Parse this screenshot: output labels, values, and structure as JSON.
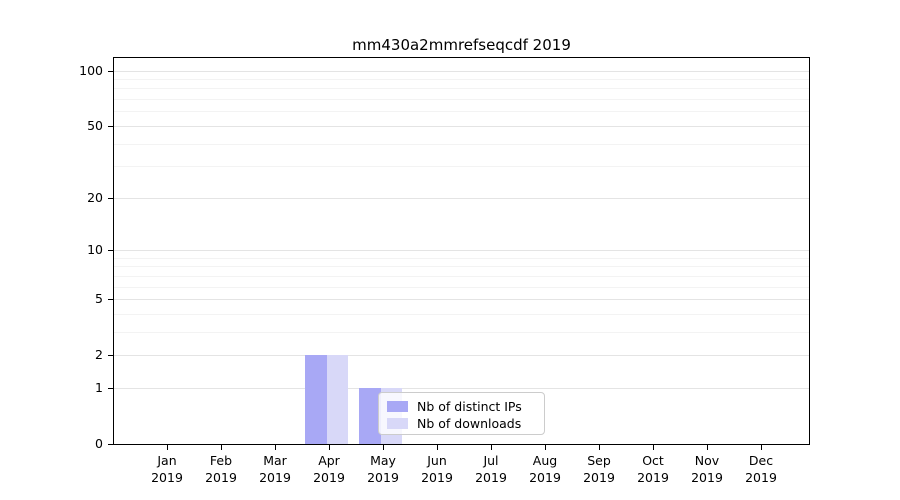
{
  "chart_data": {
    "type": "bar",
    "title": "mm430a2mmrefseqcdf 2019",
    "categories": [
      "Jan",
      "Feb",
      "Mar",
      "Apr",
      "May",
      "Jun",
      "Jul",
      "Aug",
      "Sep",
      "Oct",
      "Nov",
      "Dec"
    ],
    "year": "2019",
    "series": [
      {
        "name": "Nb of distinct IPs",
        "color": "#a8a8f5",
        "values": [
          0,
          0,
          0,
          2,
          1,
          0,
          0,
          0,
          0,
          0,
          0,
          0
        ]
      },
      {
        "name": "Nb of downloads",
        "color": "#d8d8f8",
        "values": [
          0,
          0,
          0,
          2,
          1,
          0,
          0,
          0,
          0,
          0,
          0,
          0
        ]
      }
    ],
    "yscale": "log10(1+x)",
    "ylim": [
      0,
      118
    ],
    "yticks": [
      0,
      1,
      2,
      5,
      10,
      20,
      50,
      100
    ],
    "minor_gridlines": [
      3,
      4,
      6,
      7,
      8,
      9,
      30,
      40,
      60,
      70,
      80,
      90
    ],
    "grid": "horizontal",
    "legend_position": "inside-bottom-center"
  },
  "colors": {
    "axis": "#000000",
    "text": "#000000",
    "grid_major": "#e4e4e4",
    "grid_minor": "#f3f3f3",
    "legend_border": "#cccccc",
    "background": "#ffffff"
  }
}
